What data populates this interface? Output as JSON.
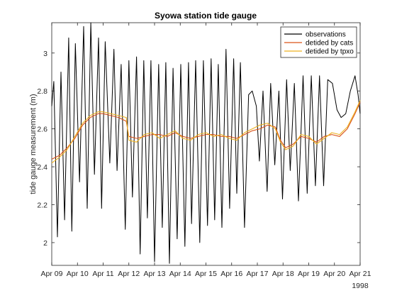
{
  "chart_data": {
    "type": "line",
    "title": "Syowa station tide gauge",
    "xlabel": "",
    "ylabel": "tide gauge measurement (m)",
    "x_tick_labels": [
      "Apr 09",
      "Apr 10",
      "Apr 11",
      "Apr 12",
      "Apr 13",
      "Apr 14",
      "Apr 15",
      "Apr 16",
      "Apr 17",
      "Apr 18",
      "Apr 19",
      "Apr 20",
      "Apr 21"
    ],
    "x_tick_values": [
      9,
      10,
      11,
      12,
      13,
      14,
      15,
      16,
      17,
      18,
      19,
      20,
      21
    ],
    "x_unit_note": "1998",
    "xlim": [
      9,
      21
    ],
    "ylim": [
      1.88,
      3.16
    ],
    "y_ticks": [
      2,
      2.2,
      2.4,
      2.6,
      2.8,
      3
    ],
    "y_tick_labels": [
      "2",
      "2.2",
      "2.4",
      "2.6",
      "2.8",
      "3"
    ],
    "grid": false,
    "legend_position": "top-right",
    "series": [
      {
        "name": "observations",
        "color": "#000000",
        "x": [
          9.0,
          9.08,
          9.22,
          9.36,
          9.5,
          9.66,
          9.78,
          9.92,
          10.08,
          10.24,
          10.38,
          10.52,
          10.66,
          10.82,
          10.94,
          11.08,
          11.26,
          11.42,
          11.54,
          11.7,
          11.86,
          12.0,
          12.14,
          12.3,
          12.44,
          12.58,
          12.72,
          12.86,
          13.0,
          13.16,
          13.3,
          13.44,
          13.58,
          13.72,
          13.88,
          14.02,
          14.18,
          14.32,
          14.44,
          14.6,
          14.76,
          14.9,
          15.06,
          15.2,
          15.34,
          15.48,
          15.62,
          15.78,
          15.92,
          16.08,
          16.2,
          16.34,
          16.5,
          16.66,
          16.8,
          16.96,
          17.08,
          17.22,
          17.38,
          17.52,
          17.68,
          17.84,
          17.98,
          18.14,
          18.28,
          18.44,
          18.6,
          18.78,
          18.94,
          19.1,
          19.26,
          19.42,
          19.58,
          19.74,
          19.92,
          20.1,
          20.26,
          20.44,
          20.62,
          20.8,
          20.92,
          21.0
        ],
        "y": [
          2.72,
          2.85,
          2.03,
          2.9,
          2.12,
          3.08,
          2.06,
          3.05,
          2.32,
          3.14,
          2.18,
          3.16,
          2.36,
          3.08,
          2.18,
          3.06,
          2.42,
          3.02,
          2.38,
          2.94,
          2.07,
          2.96,
          2.24,
          2.98,
          1.94,
          2.96,
          2.13,
          2.96,
          1.9,
          2.94,
          2.08,
          2.95,
          1.89,
          2.92,
          2.02,
          2.94,
          1.98,
          2.95,
          2.1,
          2.96,
          2.0,
          2.96,
          2.09,
          2.97,
          2.12,
          2.94,
          2.08,
          3.02,
          2.18,
          2.97,
          2.26,
          2.95,
          2.08,
          2.78,
          2.8,
          2.72,
          2.43,
          2.8,
          2.27,
          2.84,
          2.41,
          2.8,
          2.23,
          2.86,
          2.38,
          2.84,
          2.22,
          2.88,
          2.26,
          2.88,
          2.3,
          2.88,
          2.3,
          2.86,
          2.84,
          2.7,
          2.66,
          2.68,
          2.8,
          2.88,
          2.78,
          2.68
        ]
      },
      {
        "name": "detided by cats",
        "color": "#d95319",
        "x": [
          9.0,
          9.3,
          9.6,
          9.9,
          10.2,
          10.5,
          10.8,
          11.0,
          11.3,
          11.6,
          11.9,
          12.0,
          12.3,
          12.6,
          12.9,
          13.2,
          13.5,
          13.8,
          14.1,
          14.4,
          14.7,
          15.0,
          15.3,
          15.6,
          15.9,
          16.2,
          16.5,
          16.8,
          17.1,
          17.4,
          17.7,
          17.9,
          18.1,
          18.4,
          18.7,
          19.0,
          19.3,
          19.6,
          19.9,
          20.2,
          20.5,
          20.8,
          21.0
        ],
        "y": [
          2.44,
          2.46,
          2.5,
          2.55,
          2.62,
          2.66,
          2.68,
          2.68,
          2.67,
          2.66,
          2.64,
          2.56,
          2.55,
          2.56,
          2.57,
          2.57,
          2.56,
          2.58,
          2.56,
          2.55,
          2.56,
          2.57,
          2.57,
          2.56,
          2.56,
          2.55,
          2.57,
          2.59,
          2.6,
          2.62,
          2.61,
          2.54,
          2.5,
          2.52,
          2.56,
          2.55,
          2.53,
          2.56,
          2.57,
          2.56,
          2.6,
          2.68,
          2.74
        ]
      },
      {
        "name": "detided by tpxo",
        "color": "#edb120",
        "x": [
          9.0,
          9.3,
          9.6,
          9.9,
          10.2,
          10.5,
          10.8,
          11.0,
          11.3,
          11.6,
          11.9,
          12.0,
          12.3,
          12.6,
          12.9,
          13.2,
          13.5,
          13.8,
          14.1,
          14.4,
          14.7,
          15.0,
          15.3,
          15.6,
          15.9,
          16.2,
          16.5,
          16.8,
          17.1,
          17.4,
          17.7,
          17.9,
          18.1,
          18.4,
          18.7,
          19.0,
          19.3,
          19.6,
          19.9,
          20.2,
          20.5,
          20.8,
          21.0
        ],
        "y": [
          2.42,
          2.45,
          2.49,
          2.56,
          2.63,
          2.67,
          2.69,
          2.69,
          2.68,
          2.67,
          2.66,
          2.54,
          2.53,
          2.57,
          2.58,
          2.55,
          2.57,
          2.59,
          2.55,
          2.54,
          2.57,
          2.58,
          2.56,
          2.57,
          2.55,
          2.54,
          2.58,
          2.6,
          2.62,
          2.63,
          2.6,
          2.53,
          2.49,
          2.51,
          2.57,
          2.56,
          2.52,
          2.55,
          2.58,
          2.57,
          2.61,
          2.69,
          2.75
        ]
      }
    ]
  }
}
